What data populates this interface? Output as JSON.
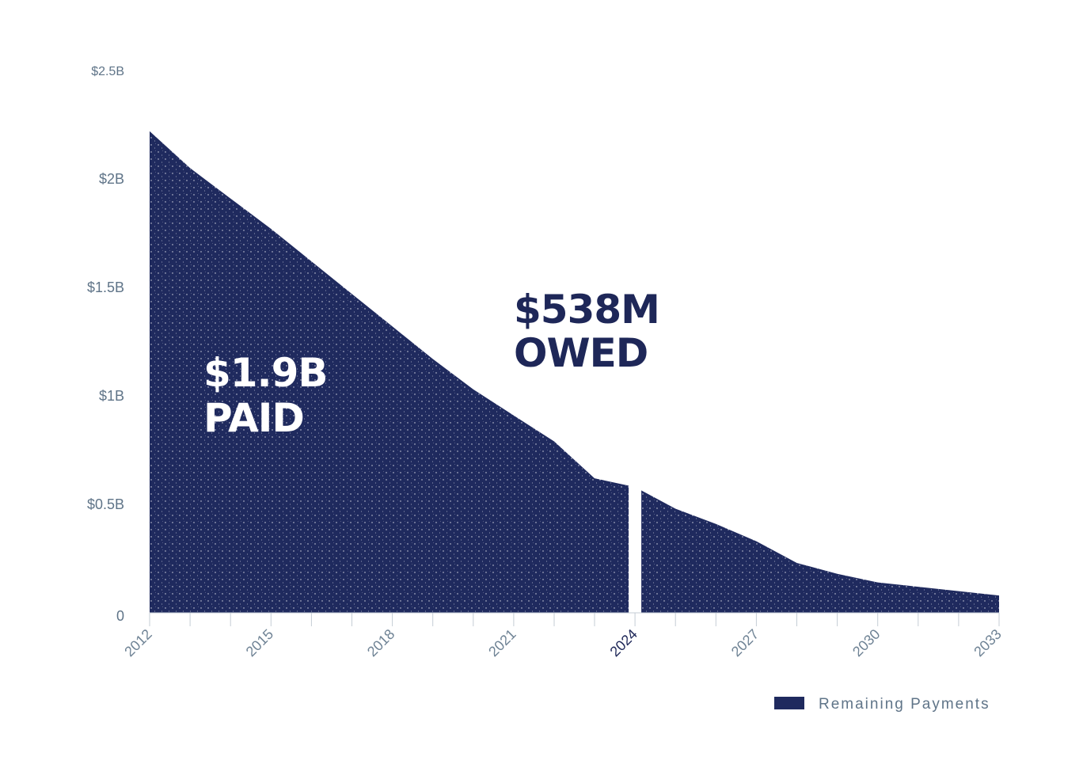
{
  "chart_data": {
    "type": "area",
    "title": "",
    "xlabel": "",
    "ylabel": "",
    "x": [
      2012,
      2013,
      2014,
      2015,
      2016,
      2017,
      2018,
      2019,
      2020,
      2021,
      2022,
      2023,
      2024,
      2025,
      2026,
      2027,
      2028,
      2029,
      2030,
      2031,
      2032,
      2033
    ],
    "series": [
      {
        "name": "Remaining Payments",
        "color": "#1f2a5e",
        "values": [
          2.22,
          2.05,
          1.91,
          1.77,
          1.62,
          1.47,
          1.32,
          1.17,
          1.03,
          0.91,
          0.79,
          0.62,
          0.58,
          0.48,
          0.41,
          0.33,
          0.23,
          0.18,
          0.14,
          0.12,
          0.1,
          0.08
        ]
      }
    ],
    "xlim": [
      2012,
      2033
    ],
    "ylim": [
      0,
      2.5
    ],
    "x_ticks": [
      {
        "value": 2012,
        "label": "2012"
      },
      {
        "value": 2015,
        "label": "2015"
      },
      {
        "value": 2018,
        "label": "2018"
      },
      {
        "value": 2021,
        "label": "2021"
      },
      {
        "value": 2024,
        "label": "2024",
        "highlight": true
      },
      {
        "value": 2027,
        "label": "2027"
      },
      {
        "value": 2030,
        "label": "2030"
      },
      {
        "value": 2033,
        "label": "2033"
      }
    ],
    "y_ticks": [
      {
        "value": 0,
        "label": "0"
      },
      {
        "value": 0.5,
        "label": "$0.5B"
      },
      {
        "value": 1,
        "label": "$1B"
      },
      {
        "value": 1.5,
        "label": "$1.5B"
      },
      {
        "value": 2,
        "label": "$2B"
      },
      {
        "value": 2.5,
        "label": "$2.5B"
      }
    ],
    "divider_year": 2024,
    "grid": false,
    "legend": {
      "position": "bottom-right",
      "label": "Remaining Payments"
    },
    "annotations": {
      "paid": {
        "lines": [
          "$1.9B",
          "PAID"
        ],
        "color": "#ffffff"
      },
      "owed": {
        "lines": [
          "$538M",
          "OWED"
        ],
        "color": "#1e2758"
      }
    }
  }
}
